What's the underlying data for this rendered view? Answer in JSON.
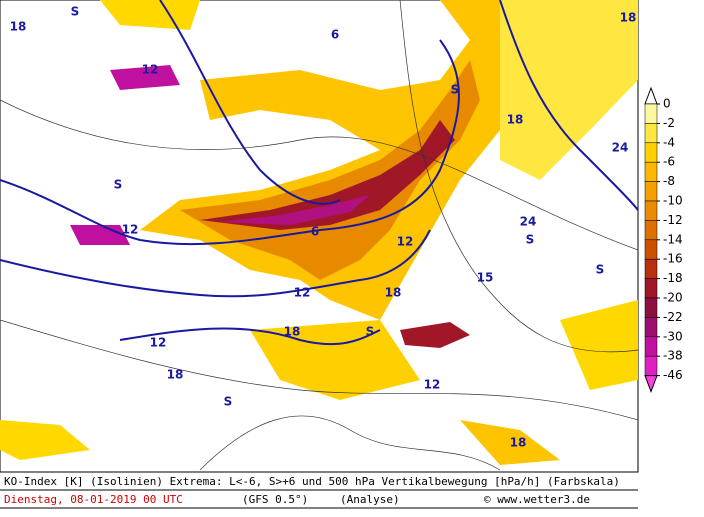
{
  "header": {},
  "map": {
    "labels": [
      "S",
      "18",
      "12",
      "S",
      "18",
      "24",
      "S",
      "24",
      "12",
      "6",
      "12",
      "12",
      "18",
      "18",
      "S",
      "12",
      "18",
      "S",
      "12",
      "18",
      "S",
      "6",
      "18",
      "S",
      "15"
    ]
  },
  "colorbar": {
    "ticks": [
      0,
      -2,
      -4,
      -6,
      -8,
      -10,
      -12,
      -14,
      -16,
      -18,
      -20,
      -22,
      -30,
      -38,
      -46
    ],
    "colors": [
      "#fff6a0",
      "#ffe640",
      "#ffd000",
      "#ffb800",
      "#f5a000",
      "#ea8a00",
      "#de7000",
      "#cc5000",
      "#b83010",
      "#a01828",
      "#8c1040",
      "#9a1070",
      "#c010a0",
      "#e020c0",
      "#ff40e0"
    ],
    "top_color": "#ffffff"
  },
  "footer": {
    "line1": "KO-Index [K] (Isolinien) Extrema: L<-6, S>+6 und 500 hPa Vertikalbewegung [hPa/h] (Farbskala)",
    "date": "Dienstag, 08-01-2019  00 UTC",
    "model": "(GFS 0.5°)",
    "run": "(Analyse)",
    "credit": "© www.wetter3.de"
  }
}
